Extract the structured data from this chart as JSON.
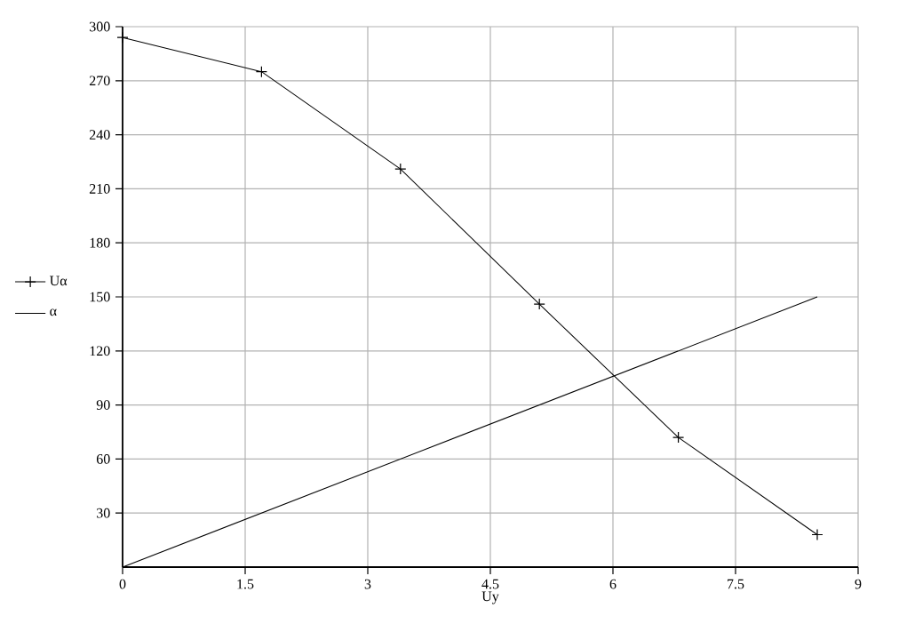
{
  "chart_data": {
    "type": "line",
    "xlabel": "Uy",
    "xlim": [
      0,
      9
    ],
    "xticks": [
      0,
      1.5,
      3,
      4.5,
      6,
      7.5,
      9
    ],
    "ylim": [
      0,
      300
    ],
    "yticks": [
      30,
      60,
      90,
      120,
      150,
      180,
      210,
      240,
      270,
      300
    ],
    "grid": true,
    "legend": "left",
    "series": [
      {
        "name": "Uα",
        "color": "#000000",
        "marker": "cross",
        "x": [
          0,
          1.7,
          3.4,
          5.1,
          6.8,
          8.5
        ],
        "values": [
          294,
          275,
          221,
          146,
          72,
          18
        ]
      },
      {
        "name": "α",
        "color": "#000000",
        "marker": "none",
        "x": [
          0,
          8.5
        ],
        "values": [
          0,
          150
        ]
      }
    ]
  }
}
